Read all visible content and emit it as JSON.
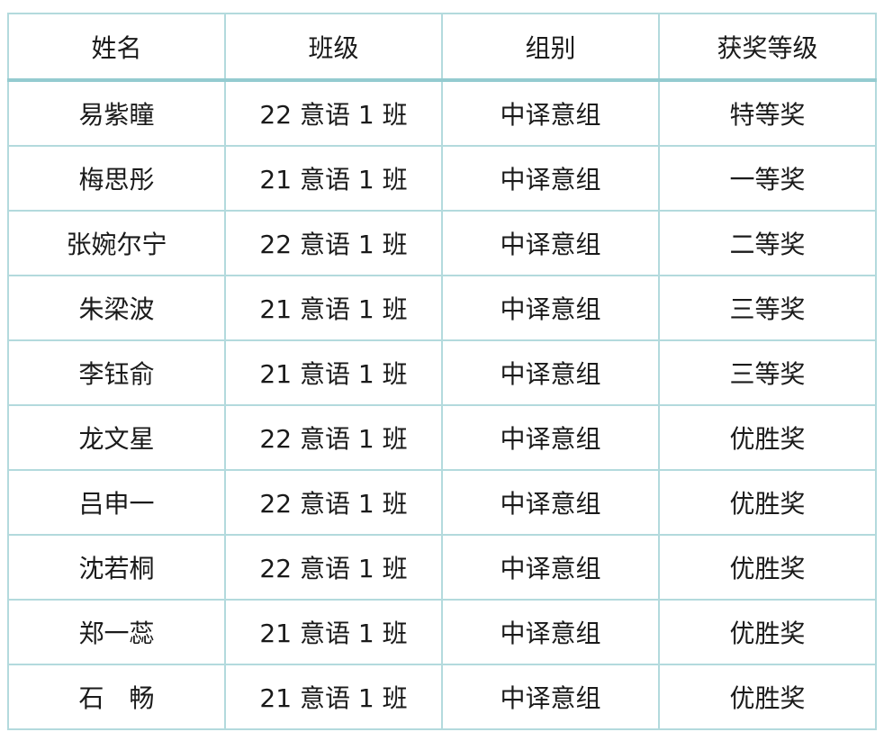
{
  "table": {
    "headers": [
      "姓名",
      "班级",
      "组别",
      "获奖等级"
    ],
    "rows": [
      [
        "易紫瞳",
        "22 意语 1 班",
        "中译意组",
        "特等奖"
      ],
      [
        "梅思彤",
        "21 意语 1 班",
        "中译意组",
        "一等奖"
      ],
      [
        "张婉尔宁",
        "22 意语 1 班",
        "中译意组",
        "二等奖"
      ],
      [
        "朱梁波",
        "21 意语 1 班",
        "中译意组",
        "三等奖"
      ],
      [
        "李钰俞",
        "21 意语 1 班",
        "中译意组",
        "三等奖"
      ],
      [
        "龙文星",
        "22 意语 1 班",
        "中译意组",
        "优胜奖"
      ],
      [
        "吕申一",
        "22 意语 1 班",
        "中译意组",
        "优胜奖"
      ],
      [
        "沈若桐",
        "22 意语 1 班",
        "中译意组",
        "优胜奖"
      ],
      [
        "郑一蕊",
        "21 意语 1 班",
        "中译意组",
        "优胜奖"
      ],
      [
        "石　畅",
        "21 意语 1 班",
        "中译意组",
        "优胜奖"
      ]
    ],
    "border_color": "#b3dadd"
  }
}
